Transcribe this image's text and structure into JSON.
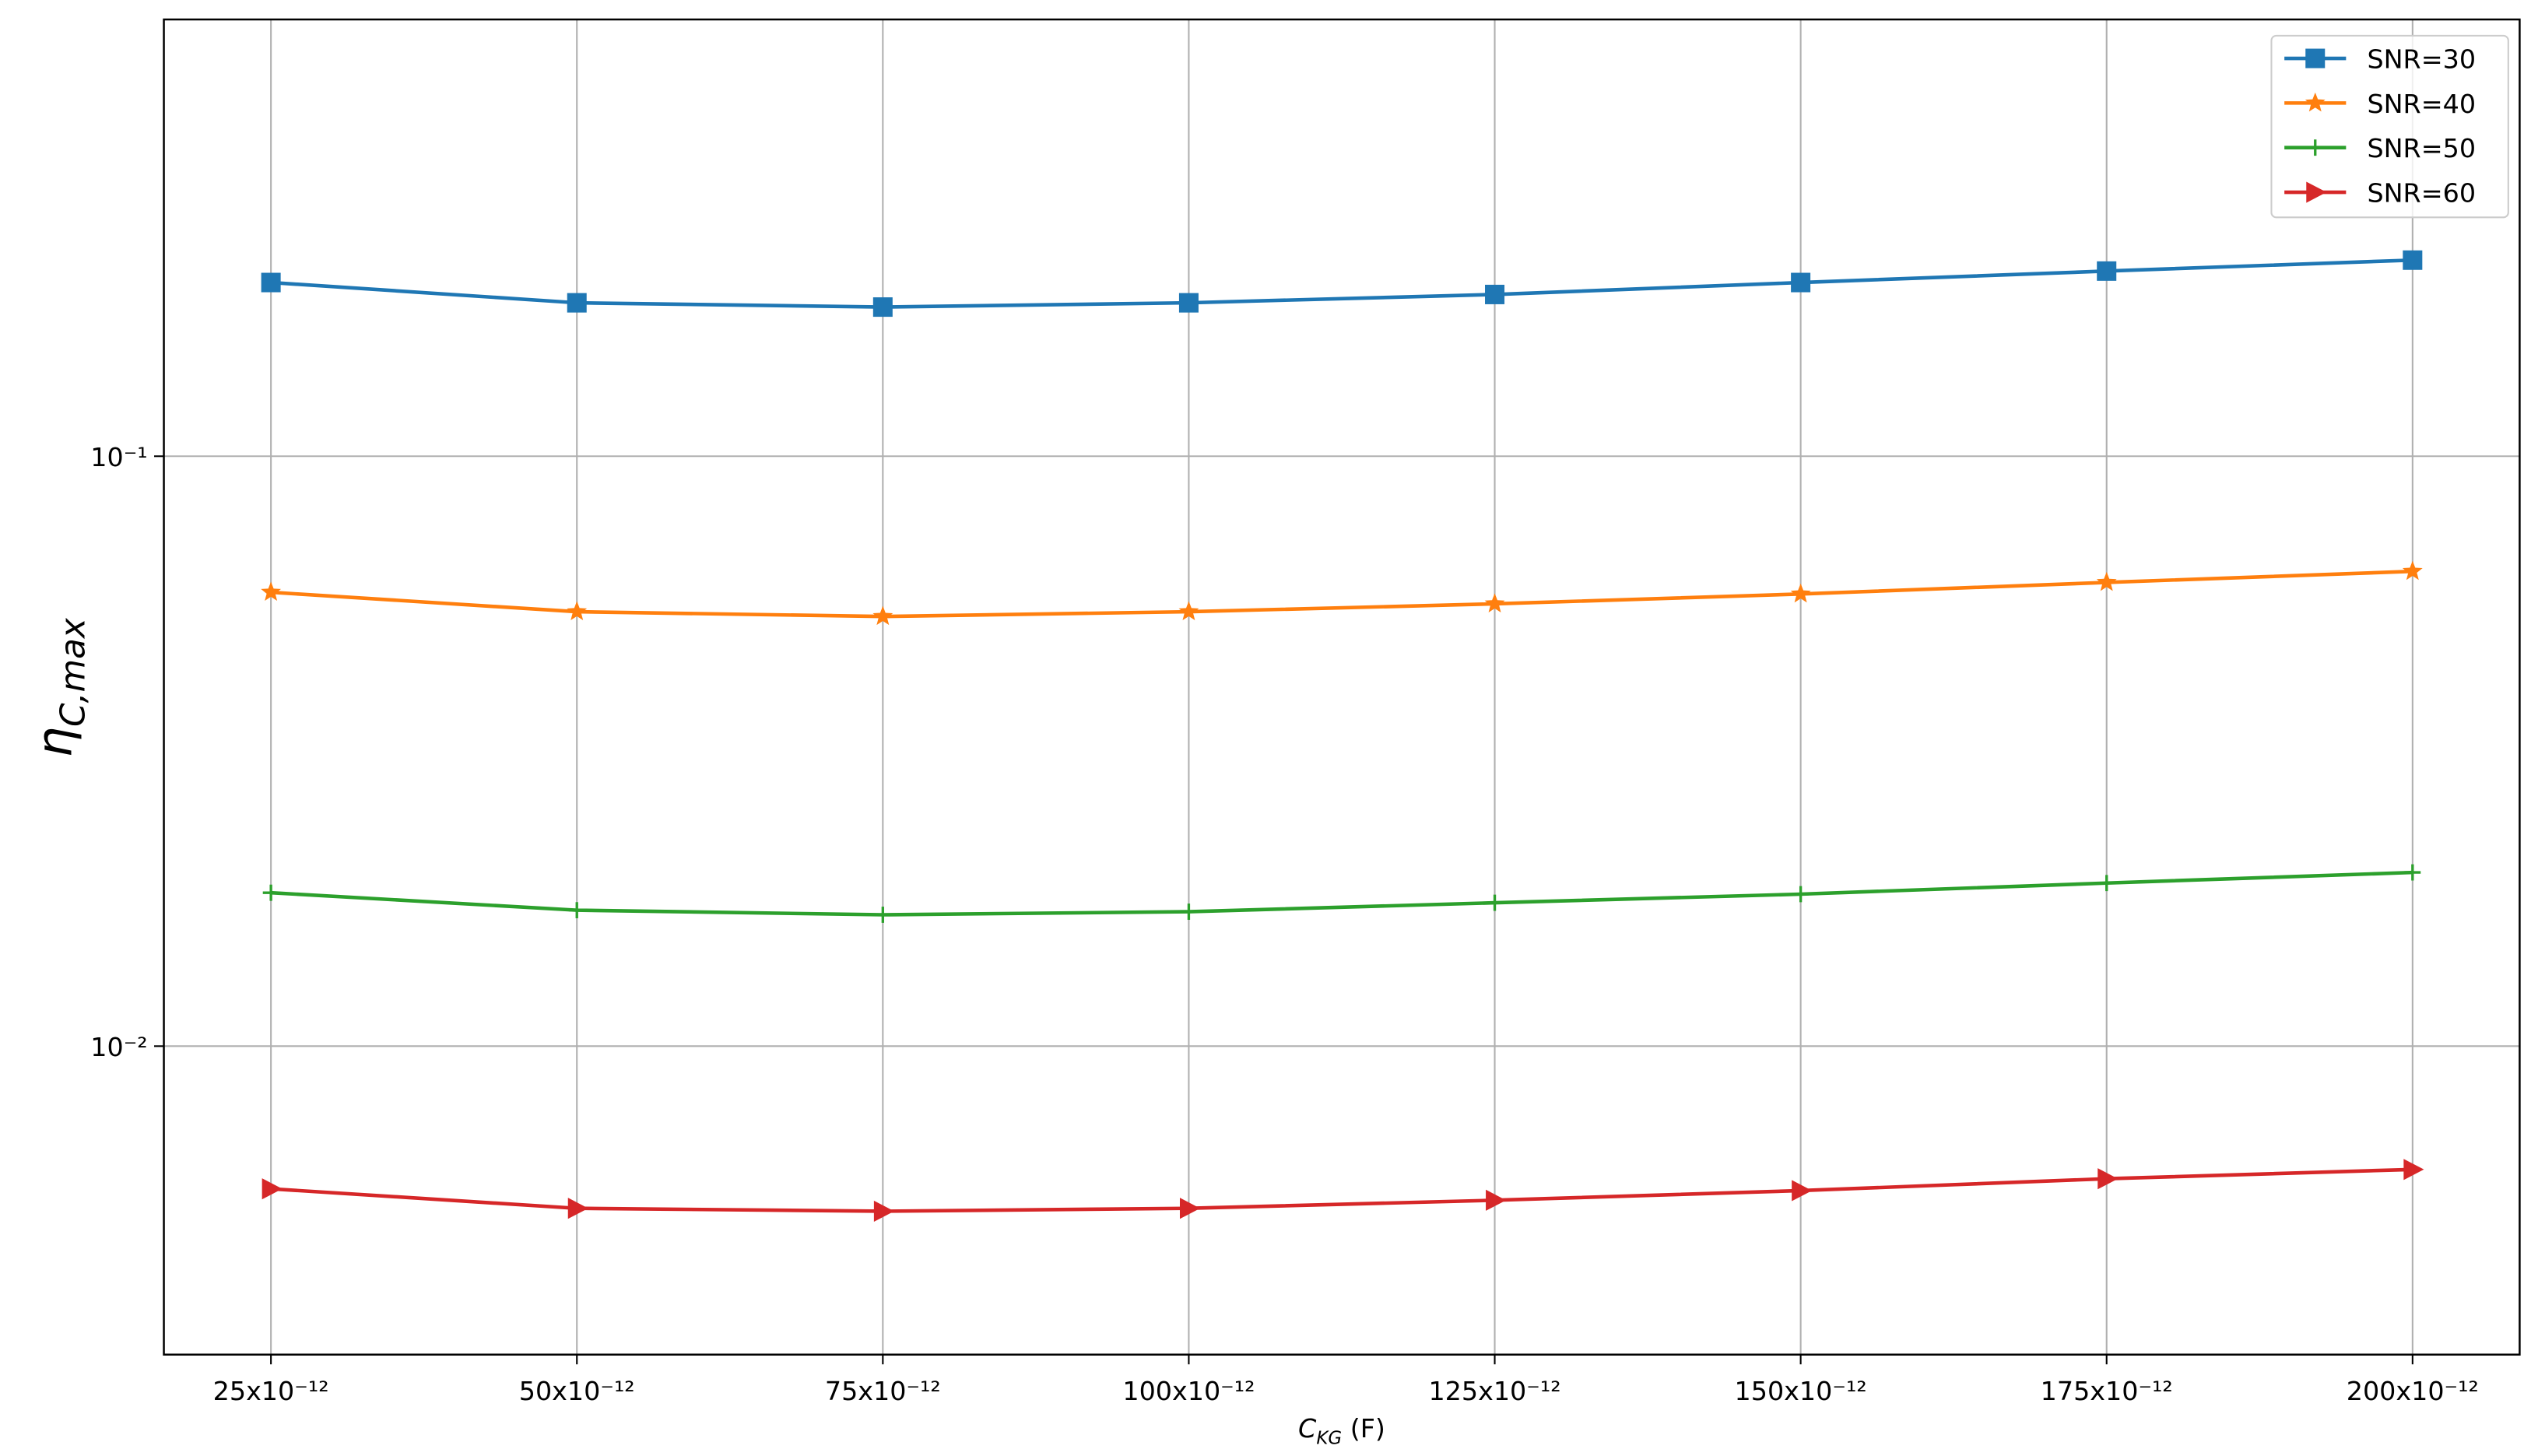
{
  "chart_data": {
    "type": "line",
    "xlabel": {
      "base": "C",
      "sub": "KG",
      "rest": " (F)"
    },
    "ylabel": {
      "base": "η",
      "sub": "C,max"
    },
    "x": [
      2.5e-11,
      5e-11,
      7.5e-11,
      1e-10,
      1.25e-10,
      1.5e-10,
      1.75e-10,
      2e-10
    ],
    "xlim": [
      1.625e-11,
      2.0875e-10
    ],
    "xticks": [
      {
        "value": 2.5e-11,
        "label": "25x10⁻¹²"
      },
      {
        "value": 5e-11,
        "label": "50x10⁻¹²"
      },
      {
        "value": 7.5e-11,
        "label": "75x10⁻¹²"
      },
      {
        "value": 1e-10,
        "label": "100x10⁻¹²"
      },
      {
        "value": 1.25e-10,
        "label": "125x10⁻¹²"
      },
      {
        "value": 1.5e-10,
        "label": "150x10⁻¹²"
      },
      {
        "value": 1.75e-10,
        "label": "175x10⁻¹²"
      },
      {
        "value": 2e-10,
        "label": "200x10⁻¹²"
      }
    ],
    "ylim": [
      0.003,
      0.55
    ],
    "yticks": [
      {
        "value": 0.01,
        "label": "10⁻²"
      },
      {
        "value": 0.1,
        "label": "10⁻¹"
      }
    ],
    "ylog": true,
    "grid": true,
    "legend": "upper right",
    "series": [
      {
        "name": "SNR=30",
        "color": "#1f77b4",
        "marker": "square",
        "values": [
          0.197,
          0.182,
          0.179,
          0.182,
          0.188,
          0.197,
          0.206,
          0.215
        ]
      },
      {
        "name": "SNR=40",
        "color": "#ff7f0e",
        "marker": "star",
        "values": [
          0.0588,
          0.0545,
          0.0535,
          0.0545,
          0.0562,
          0.0584,
          0.0611,
          0.0638
        ]
      },
      {
        "name": "SNR=50",
        "color": "#2ca02c",
        "marker": "plus",
        "values": [
          0.0182,
          0.017,
          0.0167,
          0.0169,
          0.0175,
          0.0181,
          0.0189,
          0.0197
        ]
      },
      {
        "name": "SNR=60",
        "color": "#d62728",
        "marker": "triangle-right",
        "values": [
          0.00573,
          0.00531,
          0.00525,
          0.00531,
          0.00548,
          0.00569,
          0.00596,
          0.00618
        ]
      }
    ]
  }
}
